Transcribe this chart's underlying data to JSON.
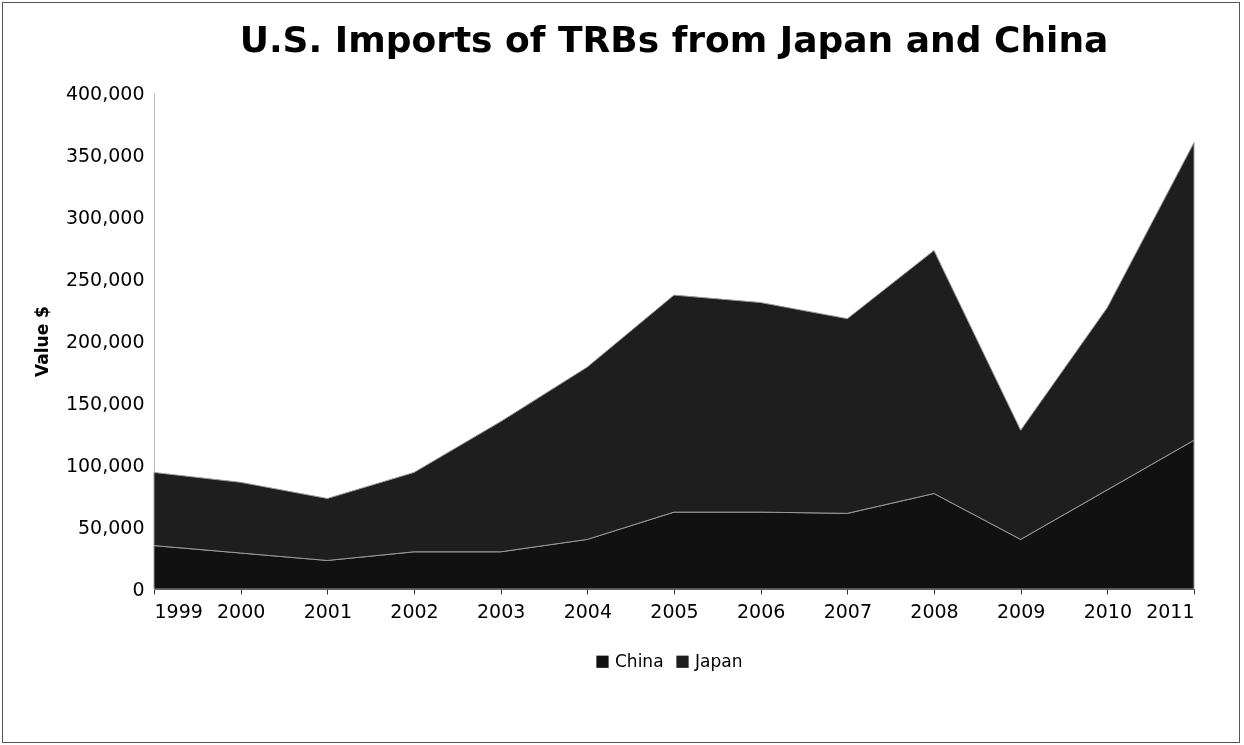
{
  "chart_data": {
    "type": "area",
    "title": "U.S. Imports of TRBs from Japan and China",
    "ylabel": "Value $",
    "stacked": true,
    "legend": "bottom",
    "grid": false,
    "categories": [
      "1999",
      "2000",
      "2001",
      "2002",
      "2003",
      "2004",
      "2005",
      "2006",
      "2007",
      "2008",
      "2009",
      "2010",
      "2011"
    ],
    "series": [
      {
        "name": "China",
        "color": "#111111",
        "values": [
          35000,
          29000,
          23000,
          30000,
          30000,
          40000,
          62000,
          62000,
          61000,
          77000,
          40000,
          80000,
          120000
        ]
      },
      {
        "name": "Japan",
        "color": "#1e1e1e",
        "values": [
          59000,
          57000,
          50000,
          64000,
          105000,
          139000,
          175000,
          169000,
          157000,
          196000,
          88000,
          147000,
          240000
        ]
      }
    ],
    "ylim": [
      0,
      400000
    ],
    "yticks": [
      0,
      {
        "value": 50000,
        "label": "50,000"
      },
      {
        "value": 100000,
        "label": "100,000"
      },
      {
        "value": 150000,
        "label": "150,000"
      },
      {
        "value": 200000,
        "label": "200,000"
      },
      {
        "value": 250000,
        "label": "250,000"
      },
      {
        "value": 300000,
        "label": "300,000"
      },
      {
        "value": 350000,
        "label": "350,000"
      },
      {
        "value": 400000,
        "label": "400,000"
      }
    ]
  }
}
